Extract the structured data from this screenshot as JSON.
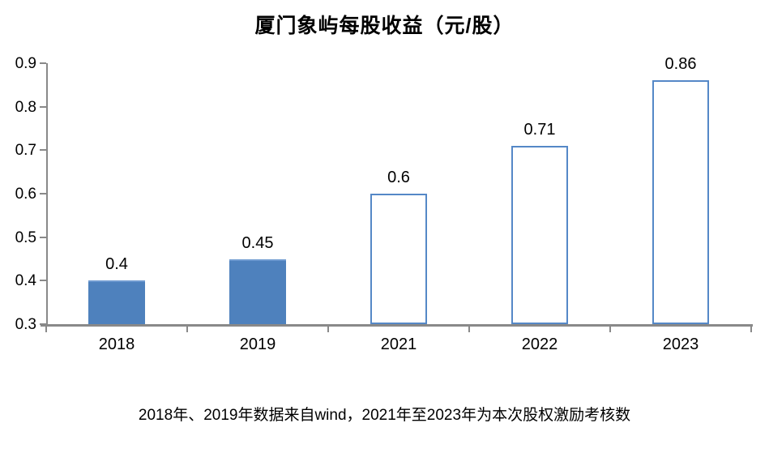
{
  "title": "厦门象屿每股收益（元/股）",
  "footnote": "2018年、2019年数据来自wind，2021年至2023年为本次股权激励考核数",
  "colors": {
    "bar_fill": "#4e81bd",
    "bar_outline": "#5588c7",
    "axis": "#898989",
    "text": "#000000",
    "background": "#ffffff"
  },
  "chart_data": {
    "type": "bar",
    "title": "厦门象屿每股收益（元/股）",
    "categories": [
      "2018",
      "2019",
      "2021",
      "2022",
      "2023"
    ],
    "values": [
      0.4,
      0.45,
      0.6,
      0.71,
      0.86
    ],
    "value_labels": [
      "0.4",
      "0.45",
      "0.6",
      "0.71",
      "0.86"
    ],
    "bar_styles": [
      "filled",
      "filled",
      "outlined",
      "outlined",
      "outlined"
    ],
    "xlabel": "",
    "ylabel": "",
    "ylim": [
      0.3,
      0.9
    ],
    "yticks": [
      0.3,
      0.4,
      0.5,
      0.6,
      0.7,
      0.8,
      0.9
    ],
    "ytick_labels": [
      "0.3",
      "0.4",
      "0.5",
      "0.6",
      "0.7",
      "0.8",
      "0.9"
    ],
    "grid": false,
    "legend": null,
    "annotation": "2018年、2019年数据来自wind，2021年至2023年为本次股权激励考核数"
  }
}
